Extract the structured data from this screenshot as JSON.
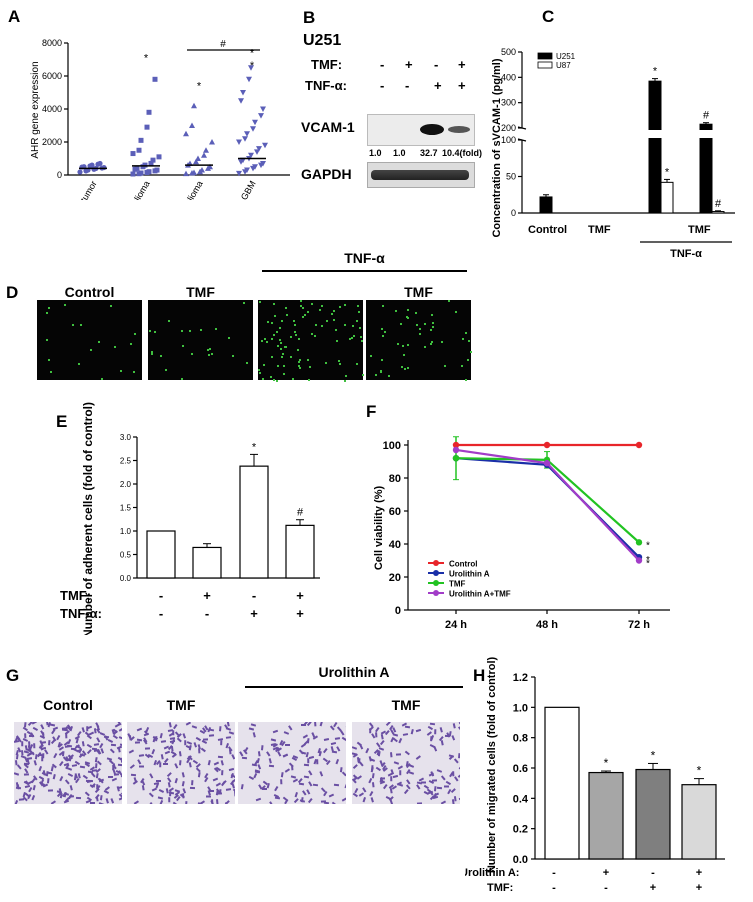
{
  "panels": {
    "a": "A",
    "b": "B",
    "c": "C",
    "d": "D",
    "e": "E",
    "f": "F",
    "g": "G",
    "h": "H"
  },
  "panel_b": {
    "cell_line": "U251",
    "tmf_label": "TMF:",
    "tnf_label": "TNF-α:",
    "tmf_signs": [
      "-",
      "+",
      "-",
      "+"
    ],
    "tnf_signs": [
      "-",
      "-",
      "+",
      "+"
    ],
    "bands": [
      "VCAM-1",
      "GAPDH"
    ],
    "fold_values": [
      "1.0",
      "1.0",
      "32.7",
      "10.4(fold)"
    ]
  },
  "panel_d": {
    "labels": [
      "Control",
      "TMF",
      "",
      "TMF"
    ],
    "group_label": "TNF-α"
  },
  "panel_g": {
    "labels": [
      "Control",
      "TMF",
      "",
      "TMF"
    ],
    "group_label": "Urolithin A"
  },
  "chart_data": [
    {
      "type": "scatter",
      "panel": "A",
      "ylabel": "AHR gene expression",
      "ylim": [
        0,
        8000
      ],
      "yticks": [
        "0",
        "2000",
        "4000",
        "6000",
        "8000"
      ],
      "categories": [
        "non-tumor",
        "grade II glioma",
        "grade III glioma",
        "GBM"
      ],
      "means": [
        400,
        550,
        600,
        1000
      ],
      "markers": [
        "circle",
        "square",
        "triangle",
        "triangle-down"
      ],
      "color": "#5b5fb8",
      "annotations": [
        "",
        "*",
        "*",
        "*\n*"
      ],
      "bracket_label": "#",
      "points": [
        [
          180,
          250,
          300,
          350,
          400,
          420,
          450,
          480,
          500,
          550,
          600,
          650,
          700
        ],
        [
          60,
          80,
          120,
          150,
          200,
          250,
          300,
          350,
          400,
          500,
          600,
          700,
          900,
          1100,
          1300,
          1500,
          2100,
          2900,
          3800,
          5800
        ],
        [
          80,
          120,
          150,
          200,
          300,
          400,
          500,
          600,
          700,
          800,
          1000,
          1200,
          1500,
          2000,
          2500,
          3000,
          4200
        ],
        [
          100,
          200,
          300,
          400,
          500,
          600,
          700,
          800,
          900,
          1000,
          1200,
          1400,
          1600,
          1800,
          2000,
          2200,
          2500,
          2800,
          3200,
          3600,
          4000,
          4500,
          5000,
          5800,
          6500
        ]
      ]
    },
    {
      "type": "bar",
      "panel": "C",
      "ylabel": "Concentration of sVCAM-1 (pg/ml)",
      "yticks_lower": [
        "0",
        "50",
        "100"
      ],
      "yticks_upper": [
        "200",
        "300",
        "400",
        "500"
      ],
      "categories": [
        "Control",
        "TMF",
        "",
        "TMF"
      ],
      "group_label": "TNF-α",
      "series": [
        {
          "name": "U251",
          "values": [
            22,
            0,
            385,
            215
          ],
          "errors": [
            3,
            0,
            10,
            6
          ],
          "color": "#000000",
          "annotations": [
            "",
            "",
            "*",
            "#"
          ]
        },
        {
          "name": "U87",
          "values": [
            0,
            0,
            42,
            2
          ],
          "errors": [
            0,
            0,
            4,
            1
          ],
          "color": "#ffffff",
          "annotations": [
            "",
            "",
            "*",
            "#"
          ]
        }
      ]
    },
    {
      "type": "bar",
      "panel": "E",
      "ylabel": "Number of adherent cells\n(fold of control)",
      "ylim": [
        0,
        3.0
      ],
      "yticks": [
        "0.0",
        "0.5",
        "1.0",
        "1.5",
        "2.0",
        "2.5",
        "3.0"
      ],
      "values": [
        1.0,
        0.65,
        2.38,
        1.12
      ],
      "errors": [
        0,
        0.08,
        0.25,
        0.12
      ],
      "annotations": [
        "",
        "",
        "*",
        "#"
      ],
      "row_labels": [
        "TMF:",
        "TNF-α:"
      ],
      "tmf_signs": [
        "-",
        "+",
        "-",
        "+"
      ],
      "tnf_signs": [
        "-",
        "-",
        "+",
        "+"
      ]
    },
    {
      "type": "line",
      "panel": "F",
      "ylabel": "Cell viability (%)",
      "ylim": [
        0,
        100
      ],
      "yticks": [
        "0",
        "20",
        "40",
        "60",
        "80",
        "100"
      ],
      "x": [
        "24 h",
        "48 h",
        "72 h"
      ],
      "series": [
        {
          "name": "Control",
          "values": [
            100,
            100,
            100
          ],
          "color": "#e8252a"
        },
        {
          "name": "Urolithin A",
          "values": [
            92,
            88,
            32
          ],
          "color": "#1a2fa8"
        },
        {
          "name": "TMF",
          "values": [
            92,
            91,
            41
          ],
          "color": "#22c322"
        },
        {
          "name": "Urolithin A+TMF",
          "values": [
            97,
            89,
            30
          ],
          "color": "#a23cc8"
        }
      ],
      "errors": [
        13,
        5,
        1
      ],
      "annotations": [
        "*",
        "*",
        "*"
      ]
    },
    {
      "type": "bar",
      "panel": "H",
      "ylabel": "Number of migrated cells\n(fold of control)",
      "ylim": [
        0,
        1.2
      ],
      "yticks": [
        "0.0",
        "0.2",
        "0.4",
        "0.6",
        "0.8",
        "1.0",
        "1.2"
      ],
      "values": [
        1.0,
        0.57,
        0.59,
        0.49
      ],
      "errors": [
        0,
        0.01,
        0.04,
        0.04
      ],
      "colors": [
        "#ffffff",
        "#a6a6a6",
        "#7f7f7f",
        "#d9d9d9"
      ],
      "annotations": [
        "",
        "*",
        "*",
        "*"
      ],
      "row_labels": [
        "Urolithin A:",
        "TMF:"
      ],
      "uro_signs": [
        "-",
        "+",
        "-",
        "+"
      ],
      "tmf_signs": [
        "-",
        "-",
        "+",
        "+"
      ]
    }
  ]
}
